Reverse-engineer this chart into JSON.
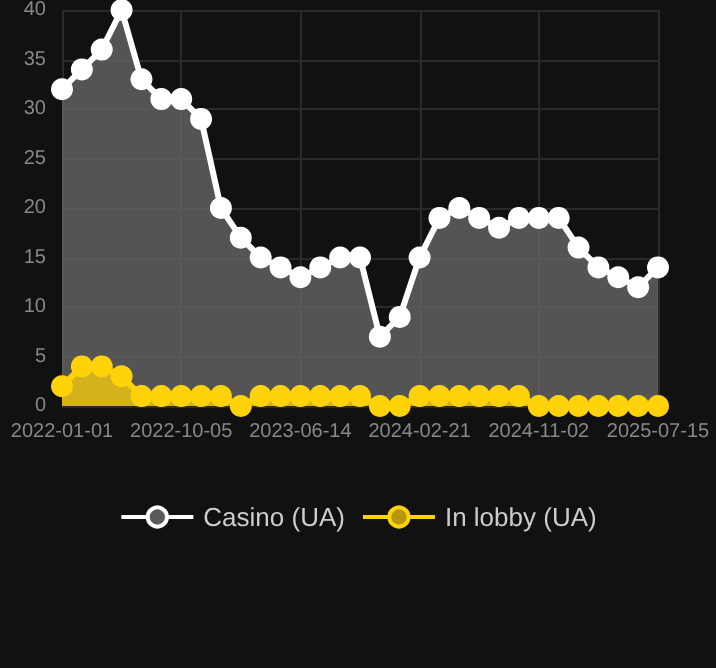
{
  "chart_data": {
    "type": "area",
    "categories": [
      "2022-01-01",
      null,
      null,
      null,
      null,
      null,
      "2022-10-05",
      null,
      null,
      null,
      null,
      null,
      "2023-06-14",
      null,
      null,
      null,
      null,
      null,
      "2024-02-21",
      null,
      null,
      null,
      null,
      null,
      "2024-11-02",
      null,
      null,
      null,
      null,
      null,
      "2025-07-15"
    ],
    "series": [
      {
        "name": "Casino (UA)",
        "color": "#ffffff",
        "values": [
          32,
          34,
          36,
          40,
          33,
          31,
          31,
          29,
          20,
          17,
          15,
          14,
          13,
          14,
          15,
          15,
          7,
          9,
          15,
          19,
          20,
          19,
          18,
          19,
          19,
          19,
          16,
          14,
          13,
          12,
          14
        ]
      },
      {
        "name": "In lobby (UA)",
        "color": "#ffd20a",
        "values": [
          2,
          4,
          4,
          3,
          1,
          1,
          1,
          1,
          1,
          0,
          1,
          1,
          1,
          1,
          1,
          1,
          0,
          0,
          1,
          1,
          1,
          1,
          1,
          1,
          0,
          0,
          0,
          0,
          0,
          0,
          0
        ]
      }
    ],
    "ylim": [
      0,
      40
    ],
    "yticks": [
      0,
      5,
      10,
      15,
      20,
      25,
      30,
      35,
      40
    ],
    "grid": true,
    "legend": "bottom",
    "marker": "circle"
  }
}
